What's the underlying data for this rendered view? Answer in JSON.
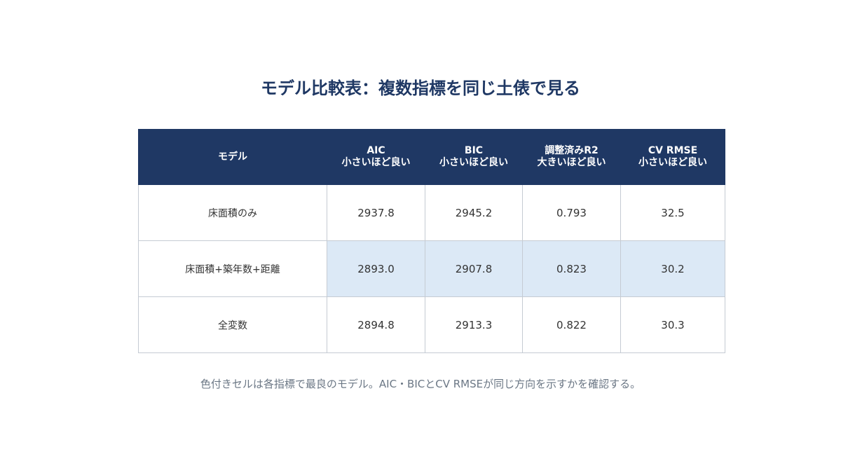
{
  "title": "モデル比較表：複数指標を同じ土俵で見る",
  "table": {
    "headers": [
      {
        "label": "モデル",
        "sub": ""
      },
      {
        "label": "AIC",
        "sub": "小さいほど良い"
      },
      {
        "label": "BIC",
        "sub": "小さいほど良い"
      },
      {
        "label": "調整済みR2",
        "sub": "大きいほど良い"
      },
      {
        "label": "CV RMSE",
        "sub": "小さいほど良い"
      }
    ]
  },
  "chart_data": {
    "type": "table",
    "columns": [
      "モデル",
      "AIC",
      "BIC",
      "調整済みR2",
      "CV RMSE"
    ],
    "rows": [
      {
        "model": "床面積のみ",
        "aic": "2937.8",
        "bic": "2945.2",
        "adj_r2": "0.793",
        "cv_rmse": "32.5",
        "best": false
      },
      {
        "model": "床面積+築年数+距離",
        "aic": "2893.0",
        "bic": "2907.8",
        "adj_r2": "0.823",
        "cv_rmse": "30.2",
        "best": true
      },
      {
        "model": "全変数",
        "aic": "2894.8",
        "bic": "2913.3",
        "adj_r2": "0.822",
        "cv_rmse": "30.3",
        "best": false
      }
    ]
  },
  "highlight_color": "#dce9f6",
  "header_color": "#1f3864",
  "footnote": "色付きセルは各指標で最良のモデル。AIC・BICとCV RMSEが同じ方向を示すかを確認する。"
}
